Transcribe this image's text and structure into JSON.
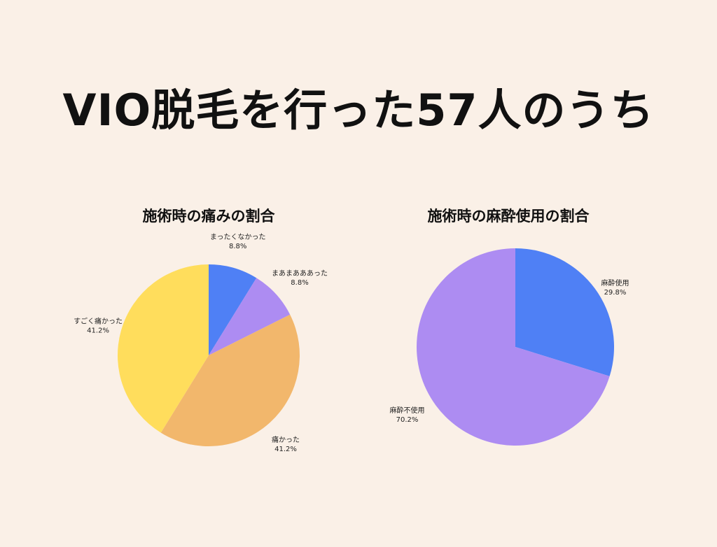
{
  "header": {
    "title": "VIO脱毛を行った57人のうち"
  },
  "chart_data": [
    {
      "type": "pie",
      "title": "施術時の痛みの割合",
      "slices": [
        {
          "label": "まったくなかった",
          "value": 8.8,
          "display": "8.8%",
          "color": "#4f80f5"
        },
        {
          "label": "まあまあああった",
          "value": 8.8,
          "display": "8.8%",
          "color": "#ad8cf2"
        },
        {
          "label": "痛かった",
          "value": 41.2,
          "display": "41.2%",
          "color": "#f2b76c"
        },
        {
          "label": "すごく痛かった",
          "value": 41.2,
          "display": "41.2%",
          "color": "#ffdd5c"
        }
      ]
    },
    {
      "type": "pie",
      "title": "施術時の麻酔使用の割合",
      "slices": [
        {
          "label": "麻酔使用",
          "value": 29.8,
          "display": "29.8%",
          "color": "#4f80f5"
        },
        {
          "label": "麻酔不使用",
          "value": 70.2,
          "display": "70.2%",
          "color": "#ad8cf2"
        }
      ]
    }
  ]
}
